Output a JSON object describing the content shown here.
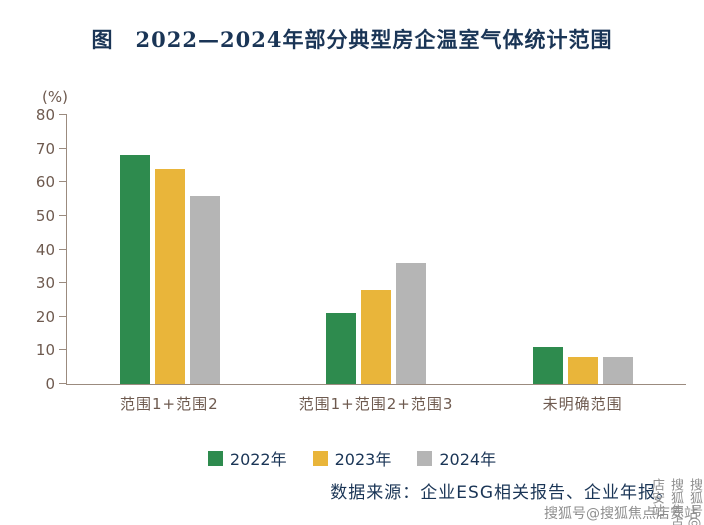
{
  "title": "图　2022—2024年部分典型房企温室气体统计范围",
  "chart_data": {
    "type": "bar",
    "title": "图 2022—2024年部分典型房企温室气体统计范围",
    "xlabel": "",
    "ylabel": "(%)",
    "ylim": [
      0,
      80
    ],
    "yticks": [
      0,
      10,
      20,
      30,
      40,
      50,
      60,
      70,
      80
    ],
    "grid": false,
    "legend_position": "bottom",
    "categories": [
      "范围1+范围2",
      "范围1+范围2+范围3",
      "未明确范围"
    ],
    "series": [
      {
        "name": "2022年",
        "color": "#2e8b4e",
        "values": [
          68,
          21,
          11
        ]
      },
      {
        "name": "2023年",
        "color": "#e9b53a",
        "values": [
          64,
          28,
          8
        ]
      },
      {
        "name": "2024年",
        "color": "#b5b5b5",
        "values": [
          56,
          36,
          8
        ]
      }
    ]
  },
  "source_text": "数据来源：企业ESG相关报告、企业年报。",
  "watermark": {
    "horizontal": "搜狐号@搜狐焦点店安站",
    "vertical": "搜狐号@搜狐焦点店安站"
  },
  "colors": {
    "title_text": "#1a3556",
    "axis_text": "#6e5a4f",
    "axis_line": "#9b8b7f",
    "watermark": "#8f8f8f"
  }
}
